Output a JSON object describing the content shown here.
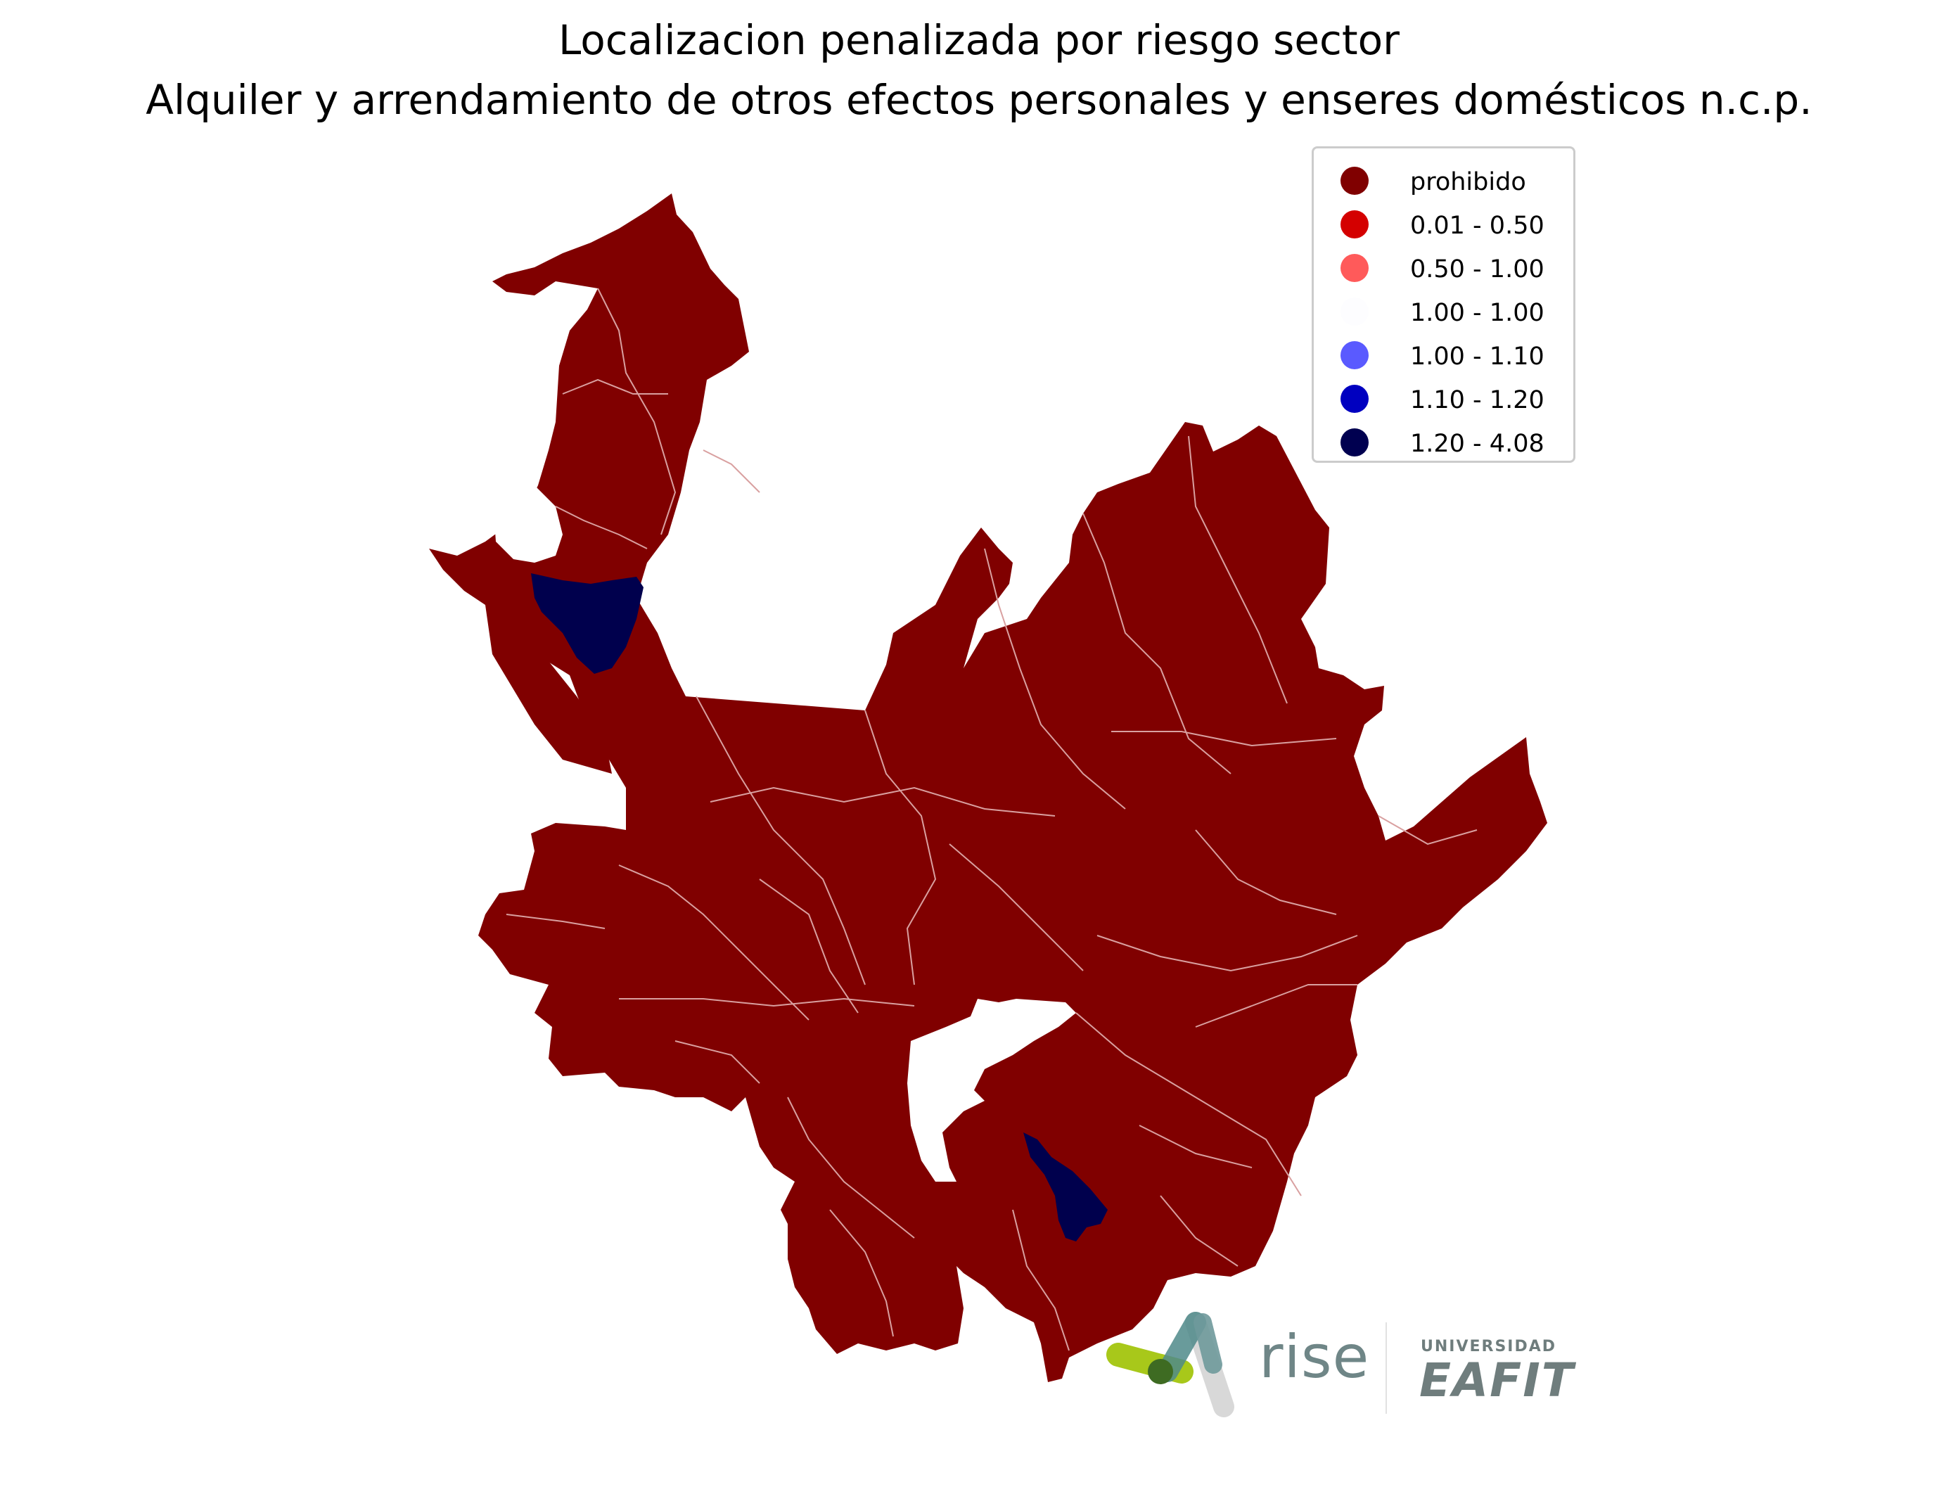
{
  "title_line1": "Localizacion penalizada por riesgo sector",
  "title_line2": "Alquiler y arrendamiento de otros efectos personales y enseres domésticos n.c.p.",
  "legend": [
    {
      "label": "prohibido",
      "color": "#800000"
    },
    {
      "label": "0.01 - 0.50",
      "color": "#d40000"
    },
    {
      "label": "0.50 - 1.00",
      "color": "#ff5a5a"
    },
    {
      "label": "1.00 - 1.00",
      "color": "#fdfdff"
    },
    {
      "label": "1.00 - 1.10",
      "color": "#5a5aff"
    },
    {
      "label": "1.10 - 1.20",
      "color": "#0000c0"
    },
    {
      "label": "1.20 - 4.08",
      "color": "#000050"
    }
  ],
  "map_colors": {
    "region": "#800000",
    "highlight": "#00004d",
    "borders": "#d9a0a0"
  },
  "logos": {
    "rise": "rise",
    "eafit_small": "UNIVERSIDAD",
    "eafit_big": "EAFIT"
  }
}
